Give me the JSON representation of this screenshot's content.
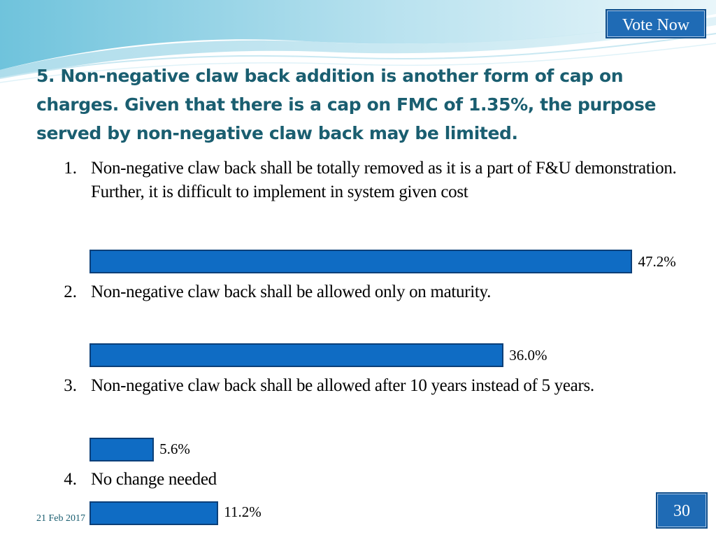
{
  "header": {
    "vote_button_label": "Vote Now"
  },
  "question": {
    "title": "5. Non-negative claw back addition is another form of cap on charges. Given that there is a cap on FMC of 1.35%, the purpose served by non-negative claw back may be limited."
  },
  "options": [
    {
      "number": "1.",
      "text": "Non-negative claw back shall be totally removed as it is a part of F&U demonstration. Further, it is difficult to implement in system given cost",
      "percent": 47.2,
      "percent_label": "47.2%"
    },
    {
      "number": "2.",
      "text": "Non-negative claw back shall be allowed only on maturity.",
      "percent": 36.0,
      "percent_label": "36.0%"
    },
    {
      "number": "3.",
      "text": "Non-negative claw back shall be allowed after 10 years instead of 5 years.",
      "percent": 5.6,
      "percent_label": "5.6%"
    },
    {
      "number": "4.",
      "text": "No change needed",
      "percent": 11.2,
      "percent_label": "11.2%"
    }
  ],
  "footer": {
    "date": "21 Feb 2017",
    "page_number": "30"
  },
  "colors": {
    "title": "#1a5e70",
    "bar_fill": "#0f6cc4",
    "bar_border": "#0b3f78",
    "button_fill": "#1f6bb5"
  }
}
